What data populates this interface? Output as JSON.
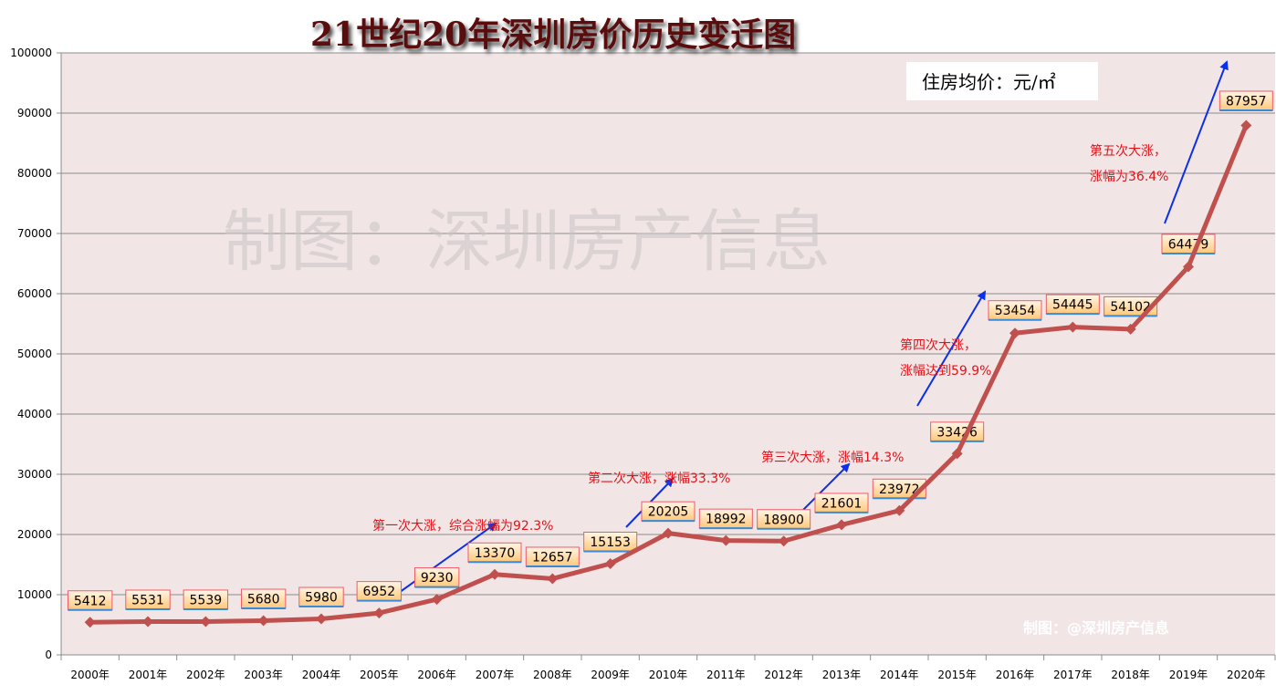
{
  "chart_data": {
    "type": "line",
    "title": "21世纪20年深圳房价历史变迁图",
    "unit_label": "住房均价：元/㎡",
    "watermark": "制图：深圳房产信息",
    "watermark_small": "制图：@深圳房产信息",
    "categories": [
      "2000年",
      "2001年",
      "2002年",
      "2003年",
      "2004年",
      "2005年",
      "2006年",
      "2007年",
      "2008年",
      "2009年",
      "2010年",
      "2011年",
      "2012年",
      "2013年",
      "2014年",
      "2015年",
      "2016年",
      "2017年",
      "2018年",
      "2019年",
      "2020年"
    ],
    "series": [
      {
        "values": [
          5412,
          5531,
          5539,
          5680,
          5980,
          6952,
          9230,
          13370,
          12657,
          15153,
          20205,
          18992,
          18900,
          21601,
          23972,
          33426,
          53454,
          54445,
          54102,
          64479,
          87957
        ],
        "color": "#c0504d"
      }
    ],
    "data_labels": [
      "5412",
      "5531",
      "5539",
      "5680",
      "5980",
      "6952",
      "9230",
      "13370",
      "12657",
      "15153",
      "20205",
      "18992",
      "18900",
      "21601",
      "23972",
      "33426",
      "53454",
      "54445",
      "54102",
      "64479",
      "87957"
    ],
    "y_ticks": [
      "0",
      "10000",
      "20000",
      "30000",
      "40000",
      "50000",
      "60000",
      "70000",
      "80000",
      "90000",
      "100000"
    ],
    "ylim": [
      0,
      100000
    ],
    "grid": true,
    "plot_bg": "#f2e5e5",
    "title_color": "#5a0f0f",
    "annotation_color": "#e0141b",
    "arrow_color": "#0b30e8",
    "annotations": [
      {
        "lines": [
          "第一次大涨，综合涨幅为92.3%"
        ]
      },
      {
        "lines": [
          "第二次大涨，涨幅33.3%"
        ]
      },
      {
        "lines": [
          "第三次大涨，涨幅14.3%"
        ]
      },
      {
        "lines": [
          "第四次大涨，",
          "涨幅达到59.9%"
        ]
      },
      {
        "lines": [
          "第五次大涨，",
          "涨幅为36.4%"
        ]
      }
    ]
  }
}
